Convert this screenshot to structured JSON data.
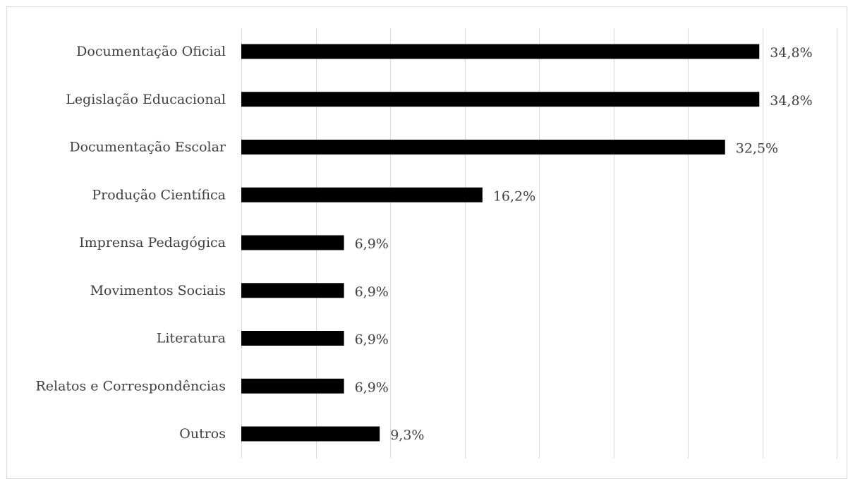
{
  "chart_data": {
    "type": "bar",
    "orientation": "horizontal",
    "categories": [
      "Documentação Oficial",
      "Legislação Educacional",
      "Documentação Escolar",
      "Produção Científica",
      "Imprensa Pedagógica",
      "Movimentos Sociais",
      "Literatura",
      "Relatos e Correspondências",
      "Outros"
    ],
    "values": [
      34.8,
      34.8,
      32.5,
      16.2,
      6.9,
      6.9,
      6.9,
      6.9,
      9.3
    ],
    "value_labels": [
      "34,8%",
      "34,8%",
      "32,5%",
      "16,2%",
      "6,9%",
      "6,9%",
      "6,9%",
      "6,9%",
      "9,3%"
    ],
    "xlim": [
      0,
      40
    ],
    "x_grid_step": 5,
    "grid": true,
    "title": "",
    "xlabel": "",
    "ylabel": "",
    "bar_color": "#000000",
    "grid_color": "#d9d9d9"
  }
}
